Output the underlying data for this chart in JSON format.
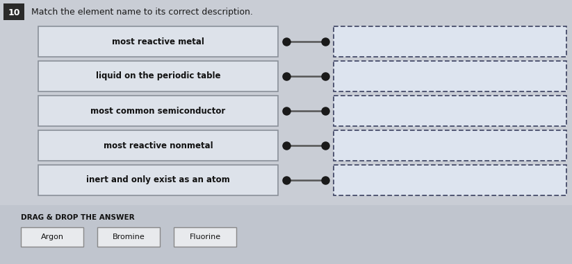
{
  "title": "Match the element name to its correct description.",
  "question_number": "10",
  "main_bg": "#c9cdd5",
  "left_boxes": [
    "most reactive metal",
    "liquid on the periodic table",
    "most common semiconductor",
    "most reactive nonmetal",
    "inert and only exist as an atom"
  ],
  "left_box_fill": "#dde2ea",
  "left_box_edge": "#8a9099",
  "right_box_fill": "#dde4ef",
  "right_box_edge_color": "#3a4060",
  "connector_dot_color": "#1a1a1a",
  "connector_line_color": "#555555",
  "drag_drop_label": "DRAG & DROP THE ANSWER",
  "drag_drop_bg": "#c0c5ce",
  "answer_words": [
    "Argon",
    "Bromine",
    "Fluorine"
  ],
  "answer_box_fill": "#e8eaed",
  "answer_box_edge": "#888888",
  "num_box_bg": "#2a2a2a",
  "num_box_text": "10",
  "header_text_color": "#1a1a1a",
  "fig_width": 8.23,
  "fig_height": 3.81,
  "dpi": 100
}
